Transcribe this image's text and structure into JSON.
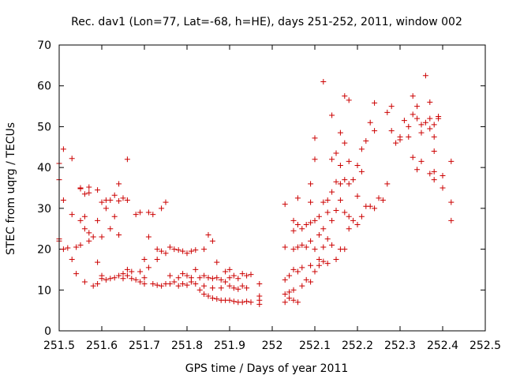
{
  "chart_data": {
    "type": "scatter",
    "title": "Rec. dav1 (Lon=77, Lat=-68, h=HE), days 251-252, 2011, window 002",
    "xlabel": "GPS time / Days of year 2011",
    "ylabel": "STEC from uqrg / TECUs",
    "xlim": [
      251.5,
      252.5
    ],
    "ylim": [
      0,
      70
    ],
    "x_ticks": [
      251.5,
      251.6,
      251.7,
      251.8,
      251.9,
      252,
      252.1,
      252.2,
      252.3,
      252.4,
      252.5
    ],
    "x_tick_labels": [
      "251.5",
      "251.6",
      "251.7",
      "251.8",
      "251.9",
      "252",
      "252.1",
      "252.2",
      "252.3",
      "252.4",
      "252.5"
    ],
    "y_ticks": [
      0,
      10,
      20,
      30,
      40,
      50,
      60,
      70
    ],
    "y_tick_labels": [
      "0",
      "10",
      "20",
      "30",
      "40",
      "50",
      "60",
      "70"
    ],
    "marker": "+",
    "color": "#cc0000",
    "grid": false,
    "series": [
      {
        "name": "STEC",
        "points": [
          [
            251.5,
            41.0
          ],
          [
            251.5,
            37.0
          ],
          [
            251.5,
            22.5
          ],
          [
            251.5,
            22.0
          ],
          [
            251.51,
            44.5
          ],
          [
            251.51,
            32.0
          ],
          [
            251.51,
            20.0
          ],
          [
            251.52,
            20.3
          ],
          [
            251.53,
            42.2
          ],
          [
            251.53,
            28.5
          ],
          [
            251.53,
            17.5
          ],
          [
            251.54,
            20.5
          ],
          [
            251.54,
            14.0
          ],
          [
            251.55,
            35.0
          ],
          [
            251.55,
            34.8
          ],
          [
            251.55,
            27.0
          ],
          [
            251.55,
            21.0
          ],
          [
            251.56,
            33.5
          ],
          [
            251.56,
            28.0
          ],
          [
            251.56,
            25.0
          ],
          [
            251.56,
            12.0
          ],
          [
            251.57,
            35.2
          ],
          [
            251.57,
            33.8
          ],
          [
            251.57,
            24.0
          ],
          [
            251.57,
            22.0
          ],
          [
            251.58,
            23.0
          ],
          [
            251.58,
            11.0
          ],
          [
            251.59,
            34.5
          ],
          [
            251.59,
            27.0
          ],
          [
            251.59,
            16.8
          ],
          [
            251.59,
            11.5
          ],
          [
            251.6,
            31.5
          ],
          [
            251.6,
            23.0
          ],
          [
            251.6,
            13.5
          ],
          [
            251.6,
            12.8
          ],
          [
            251.61,
            30.0
          ],
          [
            251.61,
            32.0
          ],
          [
            251.61,
            12.5
          ],
          [
            251.62,
            32.0
          ],
          [
            251.62,
            25.0
          ],
          [
            251.62,
            12.8
          ],
          [
            251.63,
            33.2
          ],
          [
            251.63,
            28.0
          ],
          [
            251.63,
            13.0
          ],
          [
            251.64,
            31.8
          ],
          [
            251.64,
            36.0
          ],
          [
            251.64,
            23.5
          ],
          [
            251.64,
            13.5
          ],
          [
            251.65,
            32.5
          ],
          [
            251.65,
            14.0
          ],
          [
            251.65,
            12.8
          ],
          [
            251.66,
            42.0
          ],
          [
            251.66,
            32.0
          ],
          [
            251.66,
            15.0
          ],
          [
            251.66,
            13.5
          ],
          [
            251.67,
            14.5
          ],
          [
            251.67,
            12.8
          ],
          [
            251.68,
            28.5
          ],
          [
            251.68,
            12.5
          ],
          [
            251.69,
            29.0
          ],
          [
            251.69,
            14.5
          ],
          [
            251.69,
            12.0
          ],
          [
            251.7,
            13.0
          ],
          [
            251.7,
            17.5
          ],
          [
            251.7,
            11.5
          ],
          [
            251.71,
            29.0
          ],
          [
            251.71,
            23.0
          ],
          [
            251.71,
            15.5
          ],
          [
            251.72,
            28.5
          ],
          [
            251.72,
            11.5
          ],
          [
            251.73,
            17.5
          ],
          [
            251.73,
            20.0
          ],
          [
            251.73,
            11.2
          ],
          [
            251.74,
            30.0
          ],
          [
            251.74,
            19.5
          ],
          [
            251.74,
            11.0
          ],
          [
            251.75,
            31.5
          ],
          [
            251.75,
            19.0
          ],
          [
            251.75,
            11.5
          ],
          [
            251.76,
            20.5
          ],
          [
            251.76,
            13.5
          ],
          [
            251.76,
            11.5
          ],
          [
            251.77,
            20.0
          ],
          [
            251.77,
            12.0
          ],
          [
            251.78,
            19.8
          ],
          [
            251.78,
            13.0
          ],
          [
            251.78,
            11.0
          ],
          [
            251.79,
            19.5
          ],
          [
            251.79,
            14.0
          ],
          [
            251.79,
            11.5
          ],
          [
            251.8,
            19.0
          ],
          [
            251.8,
            13.5
          ],
          [
            251.8,
            11.2
          ],
          [
            251.81,
            19.5
          ],
          [
            251.81,
            13.0
          ],
          [
            251.81,
            12.0
          ],
          [
            251.82,
            19.8
          ],
          [
            251.82,
            15.0
          ],
          [
            251.82,
            11.5
          ],
          [
            251.83,
            13.0
          ],
          [
            251.83,
            10.0
          ],
          [
            251.84,
            20.0
          ],
          [
            251.84,
            13.5
          ],
          [
            251.84,
            11.0
          ],
          [
            251.84,
            9.0
          ],
          [
            251.85,
            23.5
          ],
          [
            251.85,
            13.0
          ],
          [
            251.85,
            8.5
          ],
          [
            251.86,
            22.0
          ],
          [
            251.86,
            12.8
          ],
          [
            251.86,
            8.0
          ],
          [
            251.86,
            10.5
          ],
          [
            251.87,
            16.8
          ],
          [
            251.87,
            13.0
          ],
          [
            251.87,
            7.8
          ],
          [
            251.88,
            12.5
          ],
          [
            251.88,
            10.5
          ],
          [
            251.88,
            7.5
          ],
          [
            251.89,
            14.5
          ],
          [
            251.89,
            12.0
          ],
          [
            251.89,
            7.5
          ],
          [
            251.9,
            15.0
          ],
          [
            251.9,
            13.0
          ],
          [
            251.9,
            11.0
          ],
          [
            251.9,
            7.5
          ],
          [
            251.91,
            13.5
          ],
          [
            251.91,
            10.5
          ],
          [
            251.91,
            7.2
          ],
          [
            251.92,
            12.8
          ],
          [
            251.92,
            10.2
          ],
          [
            251.92,
            7.0
          ],
          [
            251.93,
            14.0
          ],
          [
            251.93,
            11.0
          ],
          [
            251.93,
            7.0
          ],
          [
            251.94,
            13.5
          ],
          [
            251.94,
            10.5
          ],
          [
            251.94,
            7.2
          ],
          [
            251.95,
            13.8
          ],
          [
            251.95,
            7.0
          ],
          [
            251.97,
            11.5
          ],
          [
            251.97,
            8.5
          ],
          [
            251.97,
            7.5
          ],
          [
            251.97,
            6.5
          ],
          [
            252.03,
            31.0
          ],
          [
            252.03,
            20.5
          ],
          [
            252.03,
            12.5
          ],
          [
            252.03,
            9.0
          ],
          [
            252.03,
            7.0
          ],
          [
            252.04,
            13.5
          ],
          [
            252.04,
            9.5
          ],
          [
            252.04,
            8.0
          ],
          [
            252.05,
            27.0
          ],
          [
            252.05,
            24.5
          ],
          [
            252.05,
            20.0
          ],
          [
            252.05,
            15.0
          ],
          [
            252.05,
            10.0
          ],
          [
            252.05,
            7.5
          ],
          [
            252.06,
            32.5
          ],
          [
            252.06,
            26.0
          ],
          [
            252.06,
            20.5
          ],
          [
            252.06,
            14.5
          ],
          [
            252.06,
            7.0
          ],
          [
            252.07,
            25.0
          ],
          [
            252.07,
            21.0
          ],
          [
            252.07,
            15.5
          ],
          [
            252.07,
            11.0
          ],
          [
            252.08,
            26.0
          ],
          [
            252.08,
            20.5
          ],
          [
            252.08,
            12.5
          ],
          [
            252.09,
            36.0
          ],
          [
            252.09,
            31.5
          ],
          [
            252.09,
            26.5
          ],
          [
            252.09,
            22.0
          ],
          [
            252.09,
            16.0
          ],
          [
            252.09,
            12.0
          ],
          [
            252.1,
            47.2
          ],
          [
            252.1,
            42.0
          ],
          [
            252.1,
            27.0
          ],
          [
            252.1,
            20.0
          ],
          [
            252.1,
            14.5
          ],
          [
            252.11,
            28.0
          ],
          [
            252.11,
            23.5
          ],
          [
            252.11,
            17.5
          ],
          [
            252.11,
            16.0
          ],
          [
            252.12,
            61.0
          ],
          [
            252.12,
            31.5
          ],
          [
            252.12,
            25.0
          ],
          [
            252.12,
            20.5
          ],
          [
            252.12,
            17.0
          ],
          [
            252.13,
            32.0
          ],
          [
            252.13,
            29.0
          ],
          [
            252.13,
            22.5
          ],
          [
            252.13,
            16.5
          ],
          [
            252.14,
            52.8
          ],
          [
            252.14,
            42.0
          ],
          [
            252.14,
            34.0
          ],
          [
            252.14,
            27.0
          ],
          [
            252.14,
            21.0
          ],
          [
            252.15,
            43.5
          ],
          [
            252.15,
            36.5
          ],
          [
            252.15,
            29.5
          ],
          [
            252.15,
            17.5
          ],
          [
            252.16,
            48.5
          ],
          [
            252.16,
            40.5
          ],
          [
            252.16,
            36.0
          ],
          [
            252.16,
            32.0
          ],
          [
            252.16,
            20.0
          ],
          [
            252.17,
            57.5
          ],
          [
            252.17,
            46.0
          ],
          [
            252.17,
            37.0
          ],
          [
            252.17,
            29.0
          ],
          [
            252.17,
            20.0
          ],
          [
            252.18,
            56.5
          ],
          [
            252.18,
            41.5
          ],
          [
            252.18,
            36.0
          ],
          [
            252.18,
            28.0
          ],
          [
            252.18,
            25.0
          ],
          [
            252.19,
            37.0
          ],
          [
            252.19,
            27.0
          ],
          [
            252.2,
            40.5
          ],
          [
            252.2,
            33.0
          ],
          [
            252.2,
            26.0
          ],
          [
            252.21,
            44.5
          ],
          [
            252.21,
            39.0
          ],
          [
            252.21,
            28.0
          ],
          [
            252.22,
            46.5
          ],
          [
            252.22,
            30.5
          ],
          [
            252.23,
            51.0
          ],
          [
            252.23,
            30.5
          ],
          [
            252.24,
            55.8
          ],
          [
            252.24,
            49.0
          ],
          [
            252.24,
            30.0
          ],
          [
            252.25,
            32.5
          ],
          [
            252.26,
            32.0
          ],
          [
            252.27,
            53.5
          ],
          [
            252.27,
            36.0
          ],
          [
            252.28,
            55.0
          ],
          [
            252.28,
            49.0
          ],
          [
            252.29,
            46.0
          ],
          [
            252.3,
            47.5
          ],
          [
            252.3,
            46.8
          ],
          [
            252.31,
            51.5
          ],
          [
            252.32,
            47.5
          ],
          [
            252.32,
            50.0
          ],
          [
            252.33,
            57.5
          ],
          [
            252.33,
            53.0
          ],
          [
            252.33,
            42.5
          ],
          [
            252.34,
            55.0
          ],
          [
            252.34,
            52.0
          ],
          [
            252.34,
            39.5
          ],
          [
            252.35,
            50.5
          ],
          [
            252.35,
            48.5
          ],
          [
            252.35,
            41.5
          ],
          [
            252.36,
            62.5
          ],
          [
            252.36,
            51.0
          ],
          [
            252.37,
            56.0
          ],
          [
            252.37,
            52.0
          ],
          [
            252.37,
            49.5
          ],
          [
            252.37,
            38.5
          ],
          [
            252.38,
            50.5
          ],
          [
            252.38,
            47.5
          ],
          [
            252.38,
            44.0
          ],
          [
            252.38,
            39.0
          ],
          [
            252.38,
            37.0
          ],
          [
            252.39,
            52.5
          ],
          [
            252.39,
            52.0
          ],
          [
            252.4,
            35.0
          ],
          [
            252.4,
            38.0
          ],
          [
            252.42,
            41.5
          ],
          [
            252.42,
            31.5
          ],
          [
            252.42,
            27.0
          ]
        ]
      }
    ]
  }
}
